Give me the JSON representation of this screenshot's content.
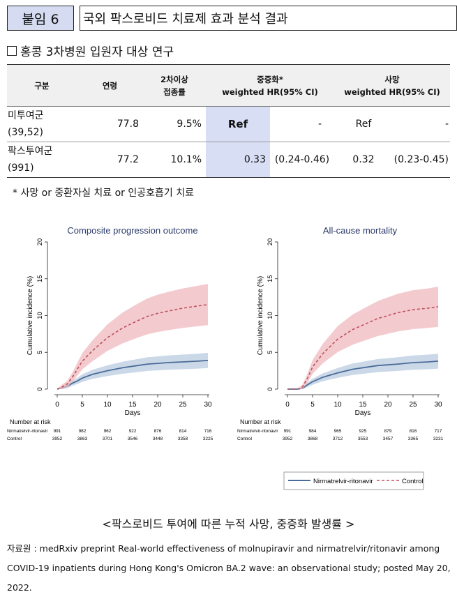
{
  "header": {
    "badge": "붙임 6",
    "title": "국외 팍스로비드 치료제 효과 분석 결과"
  },
  "subhead": "홍콩 3차병원 입원자 대상 연구",
  "table": {
    "headers": {
      "group": "구분",
      "age": "연령",
      "vacc_line1": "2차이상",
      "vacc_line2": "접종률",
      "severe_line1": "중증화*",
      "severe_line2": "weighted HR(95% CI)",
      "death_line1": "사망",
      "death_line2": "weighted HR(95% CI)"
    },
    "rows": [
      {
        "name": "미투여군",
        "n": "(39,52)",
        "age": "77.8",
        "vacc": "9.5%",
        "sev_hr": "Ref",
        "sev_ci": "-",
        "death_hr": "Ref",
        "death_ci": "-"
      },
      {
        "name": "팍스투여군",
        "n": "(991)",
        "age": "77.2",
        "vacc": "10.1%",
        "sev_hr": "0.33",
        "sev_ci": "(0.24-0.46)",
        "death_hr": "0.32",
        "death_ci": "(0.23-0.45)"
      }
    ]
  },
  "footnote": "* 사망 or 중환자실 치료 or 인공호흡기 치료",
  "chart_data": [
    {
      "type": "line",
      "title": "Composite progression outcome",
      "xlabel": "Days",
      "ylabel": "Cumulative incidence (%)",
      "xlim": [
        0,
        30
      ],
      "ylim": [
        0,
        20
      ],
      "xticks": [
        0,
        5,
        10,
        15,
        20,
        25,
        30
      ],
      "yticks": [
        0,
        5,
        10,
        15,
        20
      ],
      "x": [
        0,
        1,
        2,
        3,
        4,
        5,
        7,
        10,
        13,
        16,
        18,
        20,
        22,
        25,
        28,
        30
      ],
      "series": [
        {
          "name": "Nirmatrelvir-ritonavir",
          "values": [
            0,
            0.2,
            0.4,
            0.8,
            1.1,
            1.5,
            2.0,
            2.5,
            2.9,
            3.2,
            3.4,
            3.5,
            3.6,
            3.7,
            3.8,
            3.9
          ]
        },
        {
          "name": "Control",
          "values": [
            0,
            0.3,
            0.7,
            1.6,
            2.7,
            3.8,
            5.2,
            7.0,
            8.3,
            9.3,
            9.9,
            10.3,
            10.6,
            11.0,
            11.3,
            11.5
          ]
        }
      ],
      "risk_table": {
        "heading": "Number at risk",
        "rows": [
          {
            "label": "Nirmatrelvir-ritonavir",
            "values": [
              "991",
              "982",
              "962",
              "922",
              "876",
              "814",
              "716"
            ]
          },
          {
            "label": "Control",
            "values": [
              "3952",
              "3863",
              "3701",
              "3546",
              "3448",
              "3358",
              "3225"
            ]
          }
        ]
      }
    },
    {
      "type": "line",
      "title": "All-cause mortality",
      "xlabel": "Days",
      "ylabel": "Cumulative incidence (%)",
      "xlim": [
        0,
        30
      ],
      "ylim": [
        0,
        20
      ],
      "xticks": [
        0,
        5,
        10,
        15,
        20,
        25,
        30
      ],
      "yticks": [
        0,
        5,
        10,
        15,
        20
      ],
      "x": [
        0,
        1,
        2,
        3,
        4,
        5,
        7,
        10,
        13,
        16,
        18,
        20,
        22,
        25,
        28,
        30
      ],
      "series": [
        {
          "name": "Nirmatrelvir-ritonavir",
          "values": [
            0,
            0,
            0,
            0.1,
            0.6,
            1.0,
            1.6,
            2.2,
            2.7,
            3.0,
            3.2,
            3.3,
            3.4,
            3.6,
            3.7,
            3.8
          ]
        },
        {
          "name": "Control",
          "values": [
            0,
            0,
            0,
            0.3,
            1.5,
            3.0,
            4.8,
            6.8,
            8.1,
            9.0,
            9.6,
            10.0,
            10.4,
            10.8,
            11.0,
            11.2
          ]
        }
      ],
      "risk_table": {
        "heading": "Number at risk",
        "rows": [
          {
            "label": "Nirmatrelvir-ritonavir",
            "values": [
              "991",
              "984",
              "965",
              "925",
              "879",
              "816",
              "717"
            ]
          },
          {
            "label": "Control",
            "values": [
              "3952",
              "3868",
              "3712",
              "3553",
              "3457",
              "3365",
              "3231"
            ]
          }
        ]
      }
    }
  ],
  "legend": {
    "treated": "Nirmatrelvir-ritonavir",
    "control": "Control"
  },
  "colors": {
    "treated": "#4a6c98",
    "treated_band": "#b9cbe0",
    "control": "#c0505c",
    "control_band": "#efb9bf",
    "highlight": "#d8dff5"
  },
  "caption": "<팍스로비드 투여에 따른 누적 사망, 중증화 발생률 >",
  "source": "자료원 : medRxiv preprint Real-world effectiveness of molnupiravir and nirmatrelvir/ritonavir among COVID-19 inpatients during Hong Kong's Omicron BA.2 wave: an observational study; posted May 20, 2022."
}
